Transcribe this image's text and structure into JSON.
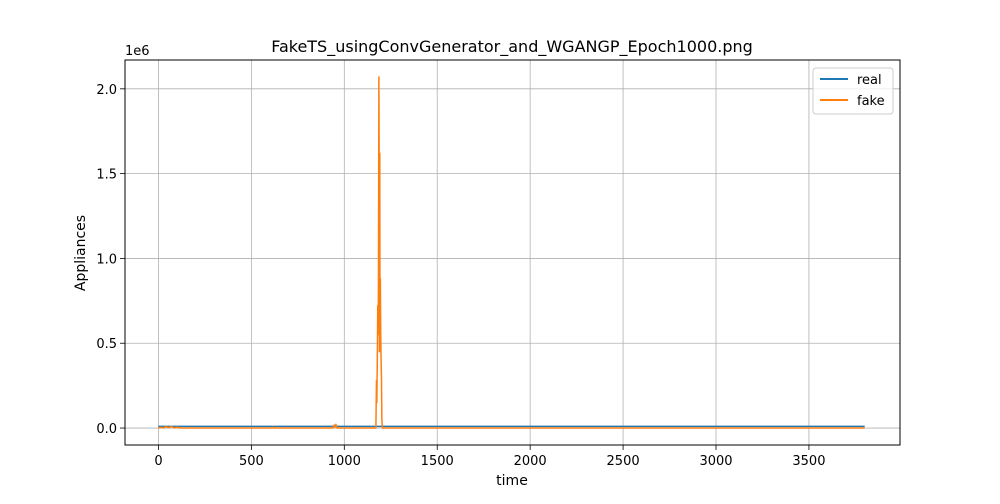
{
  "chart_data": {
    "type": "line",
    "title": "FakeTS_usingConvGenerator_and_WGANGP_Epoch1000.png",
    "xlabel": "time",
    "ylabel": "Appliances",
    "y_offset_label": "1e6",
    "y_multiplier": 1000000,
    "xlim": [
      -180,
      3990
    ],
    "ylim": [
      -0.1,
      2.17
    ],
    "xticks": [
      0,
      500,
      1000,
      1500,
      2000,
      2500,
      3000,
      3500
    ],
    "xtick_labels": [
      "0",
      "500",
      "1000",
      "1500",
      "2000",
      "2500",
      "3000",
      "3500"
    ],
    "yticks": [
      0,
      0.5,
      1.0,
      1.5,
      2.0
    ],
    "ytick_labels": [
      "0.0",
      "0.5",
      "1.0",
      "1.5",
      "2.0"
    ],
    "grid": true,
    "legend": {
      "placement": "top-right"
    },
    "series": [
      {
        "name": "real",
        "color": "#1f77b4",
        "points": [
          [
            0,
            0.01
          ],
          [
            500,
            0.01
          ],
          [
            1000,
            0.01
          ],
          [
            1500,
            0.01
          ],
          [
            2000,
            0.01
          ],
          [
            2500,
            0.01
          ],
          [
            3000,
            0.01
          ],
          [
            3500,
            0.01
          ],
          [
            3800,
            0.01
          ]
        ]
      },
      {
        "name": "fake",
        "color": "#ff7f0e",
        "points": [
          [
            0,
            0.0
          ],
          [
            15,
            0.004
          ],
          [
            25,
            0.0
          ],
          [
            40,
            0.008
          ],
          [
            55,
            0.002
          ],
          [
            70,
            0.01
          ],
          [
            85,
            0.0
          ],
          [
            100,
            0.006
          ],
          [
            115,
            0.0
          ],
          [
            300,
            0.0
          ],
          [
            610,
            0.0
          ],
          [
            615,
            0.005
          ],
          [
            620,
            0.0
          ],
          [
            940,
            0.0
          ],
          [
            945,
            0.018
          ],
          [
            950,
            0.005
          ],
          [
            955,
            0.022
          ],
          [
            960,
            0.0
          ],
          [
            1170,
            0.0
          ],
          [
            1173,
            0.28
          ],
          [
            1175,
            0.15
          ],
          [
            1178,
            0.45
          ],
          [
            1180,
            0.72
          ],
          [
            1182,
            0.55
          ],
          [
            1184,
            0.9
          ],
          [
            1186,
            2.07
          ],
          [
            1188,
            1.45
          ],
          [
            1189,
            0.45
          ],
          [
            1190,
            0.62
          ],
          [
            1191,
            1.62
          ],
          [
            1192,
            0.5
          ],
          [
            1194,
            0.88
          ],
          [
            1196,
            0.55
          ],
          [
            1198,
            0.4
          ],
          [
            1200,
            0.3
          ],
          [
            1202,
            0.05
          ],
          [
            1205,
            0.0
          ],
          [
            1500,
            0.0
          ],
          [
            2000,
            0.0
          ],
          [
            2500,
            0.0
          ],
          [
            3000,
            0.0
          ],
          [
            3500,
            0.0
          ],
          [
            3800,
            0.0
          ]
        ]
      }
    ]
  }
}
